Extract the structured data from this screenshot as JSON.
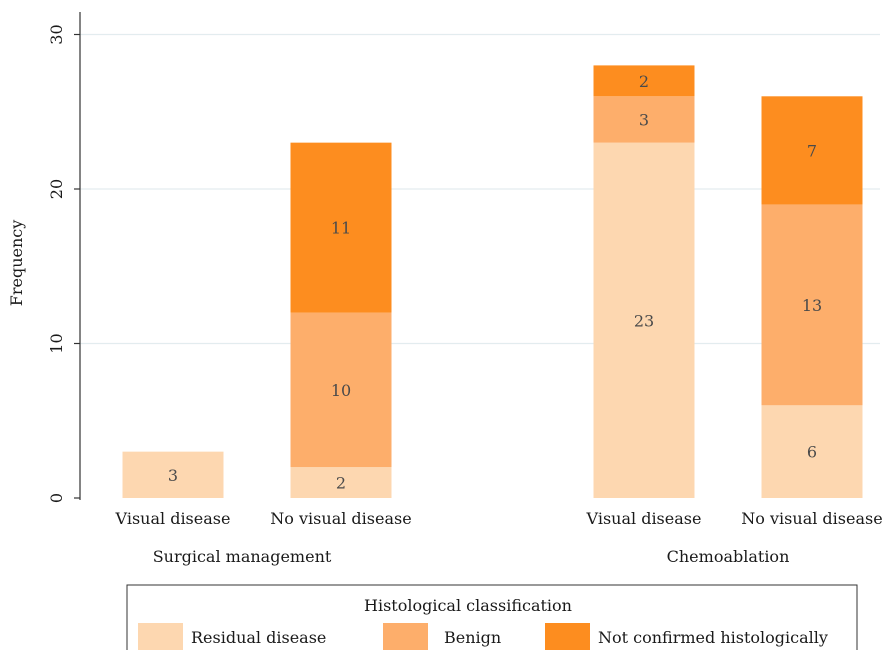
{
  "chart_data": {
    "type": "bar",
    "stacked": true,
    "title": "",
    "xlabel": "",
    "ylabel": "Frequency",
    "ylim": [
      0,
      32
    ],
    "yticks": [
      0,
      10,
      20,
      30
    ],
    "grid": true,
    "groups": [
      {
        "label": "Surgical management",
        "categories": [
          "Visual disease",
          "No visual disease"
        ]
      },
      {
        "label": "Chemoablation",
        "categories": [
          "Visual disease",
          "No visual disease"
        ]
      }
    ],
    "categories": [
      "Visual disease",
      "No visual disease",
      "Visual disease",
      "No visual disease"
    ],
    "series": [
      {
        "name": "Residual disease",
        "values": [
          3,
          2,
          23,
          6
        ],
        "color": "#fdd7b0"
      },
      {
        "name": "Benign",
        "values": [
          0,
          10,
          3,
          13
        ],
        "color": "#fdae6b"
      },
      {
        "name": "Not confirmed histologically",
        "values": [
          0,
          11,
          2,
          7
        ],
        "color": "#fd8d1f"
      }
    ],
    "legend": {
      "title": "Histological classification",
      "position": "bottom"
    }
  }
}
